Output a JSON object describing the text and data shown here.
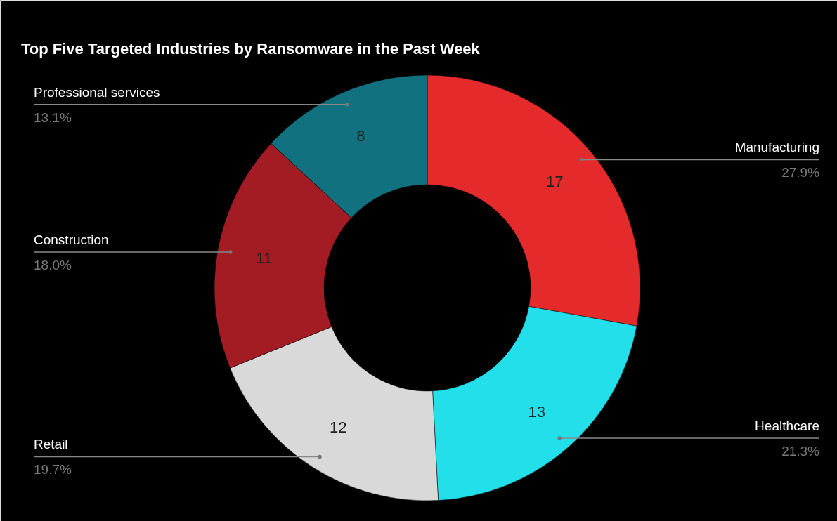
{
  "chart_data": {
    "type": "donut",
    "title": "Top Five Targeted Industries by Ransomware in the Past Week",
    "categories": [
      "Manufacturing",
      "Healthcare",
      "Retail",
      "Construction",
      "Professional services"
    ],
    "values": [
      17,
      13,
      12,
      11,
      8
    ],
    "data_labels": true,
    "colors": [
      "#e52a2b",
      "#22dfe9",
      "#d9d9d9",
      "#a31c24",
      "#12717f"
    ],
    "annotations": [
      "27.9%",
      "21.3%",
      "19.7%",
      "18.0%",
      "13.1%"
    ]
  }
}
